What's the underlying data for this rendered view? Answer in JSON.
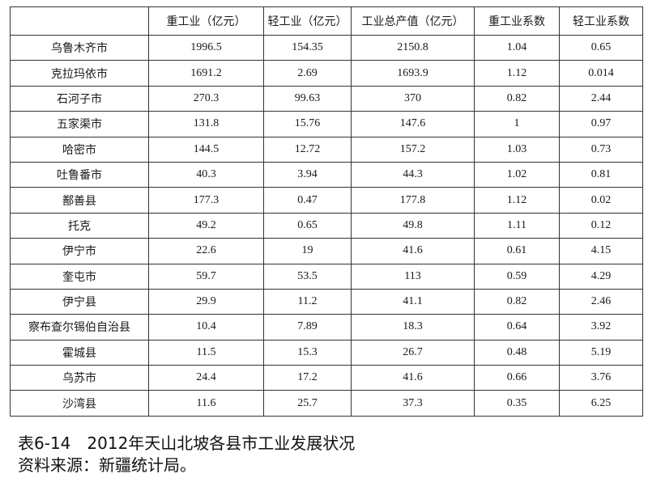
{
  "table": {
    "header": [
      "重工业（亿元）",
      "轻工业（亿元）",
      "工业总产值（亿元）",
      "重工业系数",
      "轻工业系数"
    ],
    "rows": [
      [
        "乌鲁木齐市",
        "1996.5",
        "154.35",
        "2150.8",
        "1.04",
        "0.65"
      ],
      [
        "克拉玛依市",
        "1691.2",
        "2.69",
        "1693.9",
        "1.12",
        "0.014"
      ],
      [
        "石河子市",
        "270.3",
        "99.63",
        "370",
        "0.82",
        "2.44"
      ],
      [
        "五家渠市",
        "131.8",
        "15.76",
        "147.6",
        "1",
        "0.97"
      ],
      [
        "哈密市",
        "144.5",
        "12.72",
        "157.2",
        "1.03",
        "0.73"
      ],
      [
        "吐鲁番市",
        "40.3",
        "3.94",
        "44.3",
        "1.02",
        "0.81"
      ],
      [
        "鄯善县",
        "177.3",
        "0.47",
        "177.8",
        "1.12",
        "0.02"
      ],
      [
        "托克",
        "49.2",
        "0.65",
        "49.8",
        "1.11",
        "0.12"
      ],
      [
        "伊宁市",
        "22.6",
        "19",
        "41.6",
        "0.61",
        "4.15"
      ],
      [
        "奎屯市",
        "59.7",
        "53.5",
        "113",
        "0.59",
        "4.29"
      ],
      [
        "伊宁县",
        "29.9",
        "11.2",
        "41.1",
        "0.82",
        "2.46"
      ],
      [
        "察布查尔锡伯自治县",
        "10.4",
        "7.89",
        "18.3",
        "0.64",
        "3.92"
      ],
      [
        "霍城县",
        "11.5",
        "15.3",
        "26.7",
        "0.48",
        "5.19"
      ],
      [
        "乌苏市",
        "24.4",
        "17.2",
        "41.6",
        "0.66",
        "3.76"
      ],
      [
        "沙湾县",
        "11.6",
        "25.7",
        "37.3",
        "0.35",
        "6.25"
      ]
    ]
  },
  "caption": "表6-14　2012年天山北坡各县市工业发展状况",
  "source": "资料来源：新疆统计局。"
}
